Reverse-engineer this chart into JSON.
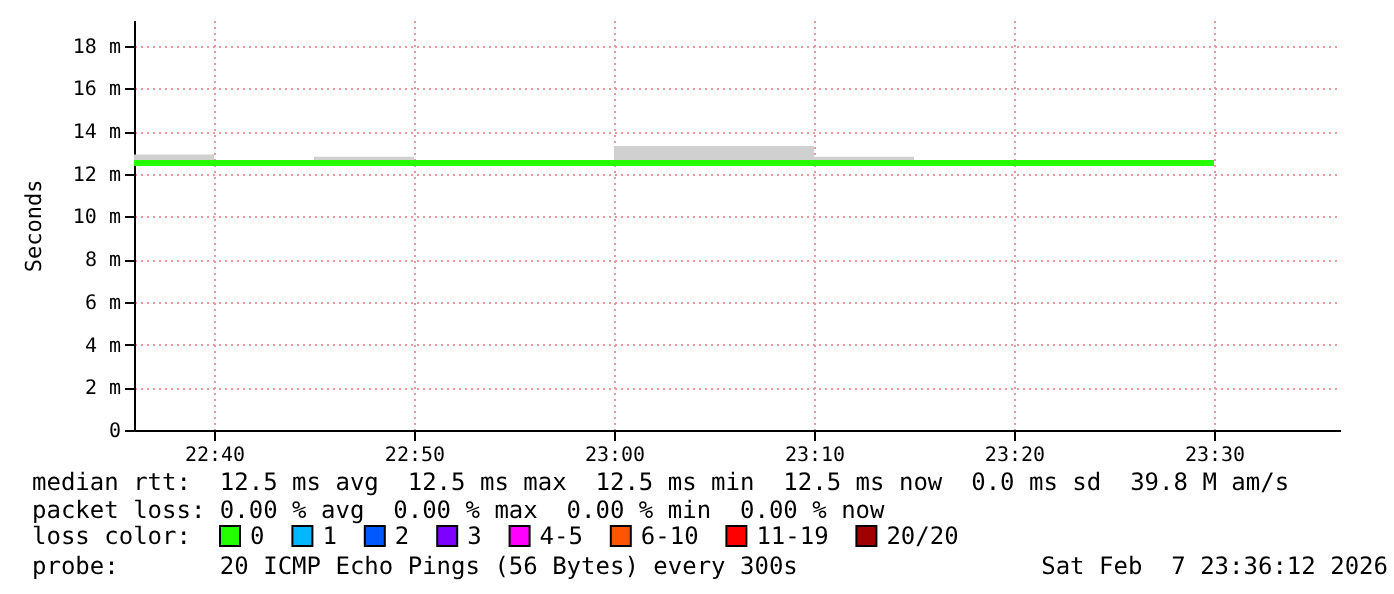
{
  "chart_data": {
    "type": "line",
    "ylabel": "Seconds",
    "xlim": [
      22.6,
      23.605
    ],
    "ylim": [
      0,
      19.2
    ],
    "xticks": [
      {
        "value": 22.6667,
        "label": "22:40"
      },
      {
        "value": 22.8333,
        "label": "22:50"
      },
      {
        "value": 23.0,
        "label": "23:00"
      },
      {
        "value": 23.1667,
        "label": "23:10"
      },
      {
        "value": 23.3333,
        "label": "23:20"
      },
      {
        "value": 23.5,
        "label": "23:30"
      }
    ],
    "yticks": [
      0,
      {
        "value": 2,
        "label": "2 m"
      },
      {
        "value": 4,
        "label": "4 m"
      },
      {
        "value": 6,
        "label": "6 m"
      },
      {
        "value": 8,
        "label": "8 m"
      },
      {
        "value": 10,
        "label": "10 m"
      },
      {
        "value": 12,
        "label": "12 m"
      },
      {
        "value": 14,
        "label": "14 m"
      },
      {
        "value": 16,
        "label": "16 m"
      },
      {
        "value": 18,
        "label": "18 m"
      }
    ],
    "grid": true,
    "legend": "bottom",
    "legend_title": "loss color:",
    "series": [
      {
        "name": "0",
        "color": "#26ff00",
        "x": [
          22.6,
          22.6667,
          22.75,
          22.8333,
          22.9167,
          23.0,
          23.0833,
          23.1667,
          23.25,
          23.3333,
          23.4167,
          23.5
        ],
        "values": [
          12.5,
          12.5,
          12.5,
          12.5,
          12.5,
          12.5,
          12.5,
          12.5,
          12.5,
          12.5,
          12.5,
          12.5
        ],
        "lower": [
          12.5,
          12.5,
          12.5,
          12.5,
          12.5,
          12.5,
          12.5,
          12.5,
          12.5,
          12.5,
          12.5,
          12.5
        ],
        "upper": [
          12.9,
          12.5,
          12.8,
          12.5,
          12.5,
          13.3,
          13.3,
          12.8,
          12.5,
          12.5,
          12.5,
          12.5
        ]
      },
      {
        "name": "1",
        "color": "#00b8ff"
      },
      {
        "name": "2",
        "color": "#0059ff"
      },
      {
        "name": "3",
        "color": "#7e00ff"
      },
      {
        "name": "4-5",
        "color": "#ff00ff"
      },
      {
        "name": "6-10",
        "color": "#ff5500"
      },
      {
        "name": "11-19",
        "color": "#ff0000"
      },
      {
        "name": "20/20",
        "color": "#a10000"
      }
    ],
    "annotations": [
      "median rtt:  12.5 ms avg  12.5 ms max  12.5 ms min  12.5 ms now  0.0 ms sd  39.8 M am/s",
      "packet loss: 0.00 % avg  0.00 % max  0.00 % min  0.00 % now",
      "probe:       20 ICMP Echo Pings (56 Bytes) every 300s",
      "Sat Feb  7 23:36:12 2026"
    ]
  }
}
